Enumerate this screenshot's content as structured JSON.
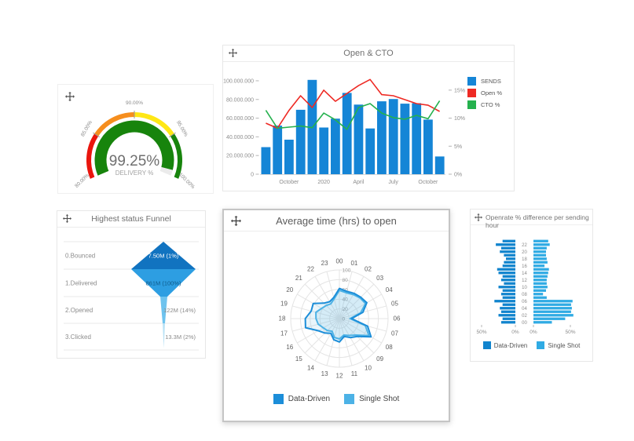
{
  "colors": {
    "bar_blue": "#1585d6",
    "light_blue": "#35ace4",
    "open_red": "#ee2a24",
    "cto_green": "#25b14e",
    "gauge_red": "#e9150d",
    "gauge_orange": "#f68e1e",
    "gauge_yellow": "#ffe715",
    "gauge_green": "#17840c",
    "panel_border": "#e7e7e7",
    "selected_border": "#c5c5c5",
    "grid_gray": "#e4e4e4",
    "text_gray": "#8a8a8a"
  },
  "chart_data": [
    {
      "type": "gauge",
      "title": "",
      "value": 99.25,
      "value_label": "99.25%",
      "sub_label": "DELIVERY %",
      "min": 80,
      "max": 100,
      "value_color": "#17840c",
      "track_color": "#ebebeb",
      "segments": [
        {
          "from": 80,
          "to": 85,
          "color": "#e9150d"
        },
        {
          "from": 85,
          "to": 90,
          "color": "#f68e1e"
        },
        {
          "from": 90,
          "to": 95,
          "color": "#ffe715"
        },
        {
          "from": 95,
          "to": 100,
          "color": "#17840c"
        }
      ],
      "tick_labels": [
        {
          "value": 80,
          "label": "80.00%",
          "angle": 203,
          "rotation": -45
        },
        {
          "value": 85,
          "label": "85.00%",
          "angle": 146.5,
          "rotation": -60
        },
        {
          "value": 90,
          "label": "90.00%",
          "angle": 90,
          "rotation": 0
        },
        {
          "value": 95,
          "label": "95.00%",
          "angle": 33.5,
          "rotation": 60
        },
        {
          "value": 100,
          "label": "100.00%",
          "angle": -23,
          "rotation": 45
        }
      ]
    },
    {
      "type": "bar+line",
      "title": "Open & CTO",
      "bar_series": {
        "name": "SENDS",
        "color": "#1585d6",
        "values": [
          29000000,
          52000000,
          37000000,
          69000000,
          101000000,
          50000000,
          59500000,
          87000000,
          74500000,
          49000000,
          78000000,
          80500000,
          75500000,
          76000000,
          58500000,
          19000000
        ]
      },
      "line_series": [
        {
          "name": "Open %",
          "color": "#ee2a24",
          "values": [
            9.1,
            8.2,
            11.4,
            14.0,
            11.9,
            15.0,
            13.0,
            14.4,
            15.8,
            16.9,
            14.2,
            14.0,
            13.3,
            12.6,
            12.3,
            11.2
          ]
        },
        {
          "name": "CTO %",
          "color": "#25b14e",
          "values": [
            11.4,
            8.2,
            8.4,
            8.6,
            8.3,
            10.9,
            9.7,
            8.0,
            11.9,
            12.6,
            10.9,
            10.1,
            9.8,
            10.5,
            9.9,
            13.1
          ]
        }
      ],
      "left_axis": {
        "max": 105000000,
        "ticks": [
          {
            "v": 0,
            "label": "0"
          },
          {
            "v": 20000000,
            "label": "20.000.000"
          },
          {
            "v": 40000000,
            "label": "40.000.000"
          },
          {
            "v": 60000000,
            "label": "60.000.000"
          },
          {
            "v": 80000000,
            "label": "80.000.000"
          },
          {
            "v": 100000000,
            "label": "100.000.000"
          }
        ]
      },
      "right_axis": {
        "max": 17.5,
        "ticks": [
          {
            "v": 0,
            "label": "0%"
          },
          {
            "v": 5,
            "label": "5%"
          },
          {
            "v": 10,
            "label": "10%"
          },
          {
            "v": 15,
            "label": "15%"
          }
        ]
      },
      "x_axis_labels": [
        {
          "bar_index": 2,
          "label": "October"
        },
        {
          "bar_index": 5,
          "label": "2020"
        },
        {
          "bar_index": 8,
          "label": "April"
        },
        {
          "bar_index": 11,
          "label": "July"
        },
        {
          "bar_index": 14,
          "label": "October"
        }
      ]
    },
    {
      "type": "funnel",
      "title": "Highest status Funnel",
      "stages": [
        {
          "label": "0.Bounced",
          "value_label": "7.50M (1%)",
          "color": "#1173c0",
          "label_inside": true,
          "text_color": "#ffffff"
        },
        {
          "label": "1.Delivered",
          "value_label": "861M (100%)",
          "color": "#2d9ee2",
          "label_inside": true,
          "text_color": "#0e5a8a"
        },
        {
          "label": "2.Opened",
          "value_label": "122M (14%)",
          "color": "#6ec3ee",
          "label_inside": false,
          "text_color": "#8a8a8a"
        },
        {
          "label": "3.Clicked",
          "value_label": "13.3M (2%)",
          "color": "#b9e2f6",
          "label_inside": false,
          "text_color": "#8a8a8a"
        }
      ]
    },
    {
      "type": "radar",
      "title": "Average time (hrs) to open",
      "categories": [
        "00",
        "01",
        "02",
        "03",
        "04",
        "05",
        "06",
        "07",
        "08",
        "09",
        "10",
        "11",
        "12",
        "13",
        "14",
        "15",
        "16",
        "17",
        "18",
        "19",
        "20",
        "21",
        "22",
        "23"
      ],
      "max": 100,
      "radial_ticks": [
        {
          "v": 0,
          "label": "0"
        },
        {
          "v": 20,
          "label": "20"
        },
        {
          "v": 40,
          "label": "40"
        },
        {
          "v": 60,
          "label": "60"
        },
        {
          "v": 80,
          "label": "80"
        },
        {
          "v": 100,
          "label": "100"
        }
      ],
      "series": [
        {
          "name": "Data-Driven",
          "color": "#1c8ed9",
          "fill": "rgba(88,174,226,0.13)",
          "values": [
            62,
            58,
            60,
            62,
            65,
            50,
            25,
            60,
            75,
            52,
            45,
            38,
            48,
            45,
            35,
            42,
            50,
            72,
            70,
            60,
            62,
            45,
            40,
            45
          ]
        },
        {
          "name": "Single Shot",
          "color": "#4cb2e6",
          "fill": "rgba(88,174,226,0.13)",
          "values": [
            58,
            55,
            57,
            60,
            62,
            45,
            22,
            55,
            70,
            48,
            40,
            35,
            42,
            40,
            30,
            35,
            38,
            45,
            48,
            50,
            42,
            38,
            35,
            42
          ]
        }
      ]
    },
    {
      "type": "pyramid-bars",
      "title": "Openrate % difference per sending hour",
      "hours": [
        "00",
        "01",
        "02",
        "03",
        "04",
        "05",
        "06",
        "07",
        "08",
        "09",
        "10",
        "11",
        "12",
        "13",
        "14",
        "15",
        "16",
        "17",
        "18",
        "19",
        "20",
        "21",
        "22",
        "23"
      ],
      "axis_tick_labels": [
        "50%",
        "0%",
        "0%",
        "50%"
      ],
      "series": [
        {
          "name": "Data-Driven",
          "side": "left",
          "color": "#1184ce",
          "values": [
            21,
            19,
            25,
            21,
            23,
            19,
            31,
            19,
            21,
            19,
            25,
            17,
            21,
            19,
            25,
            27,
            19,
            17,
            14,
            17,
            23,
            21,
            29,
            19
          ]
        },
        {
          "name": "Single Shot",
          "side": "right",
          "color": "#30abe4",
          "values": [
            25,
            43,
            54,
            51,
            52,
            51,
            53,
            18,
            13,
            17,
            19,
            18,
            18,
            19,
            20,
            21,
            15,
            19,
            18,
            17,
            17,
            18,
            22,
            20
          ]
        }
      ]
    }
  ]
}
